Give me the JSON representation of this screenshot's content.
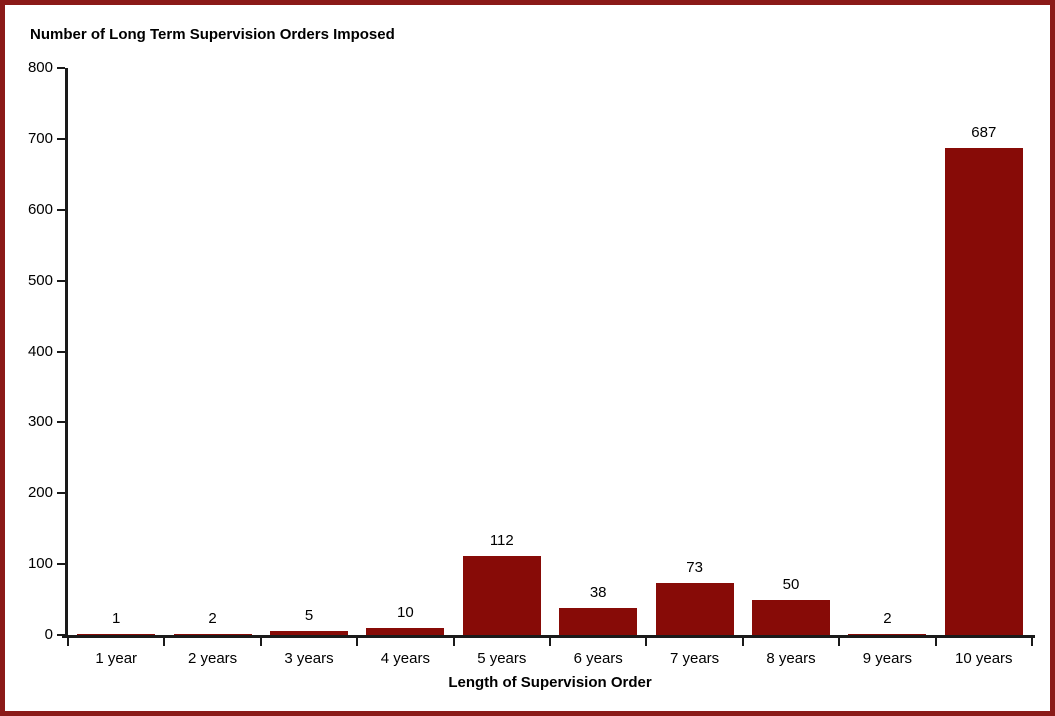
{
  "page": {
    "background_color": "#ffffff",
    "frame_border_color": "#8B1A18"
  },
  "chart_data": {
    "type": "bar",
    "title": "Number of Long Term Supervision Orders Imposed",
    "xlabel": "Length of Supervision Order",
    "ylabel": "",
    "categories": [
      "1 year",
      "2 years",
      "3 years",
      "4 years",
      "5 years",
      "6 years",
      "7 years",
      "8 years",
      "9 years",
      "10 years"
    ],
    "values": [
      1,
      2,
      5,
      10,
      112,
      38,
      73,
      50,
      2,
      687
    ],
    "data_labels": [
      "1",
      "2",
      "5",
      "10",
      "112",
      "38",
      "73",
      "50",
      "2",
      "687"
    ],
    "ylim": [
      0,
      800
    ],
    "ytick_interval": 100,
    "ytick_labels": [
      "0",
      "100",
      "200",
      "300",
      "400",
      "500",
      "600",
      "700",
      "800"
    ],
    "grid": false,
    "legend": false,
    "bar_color": "#870B07",
    "axis_color": "#1a1a1a",
    "text_color": "#000000"
  }
}
